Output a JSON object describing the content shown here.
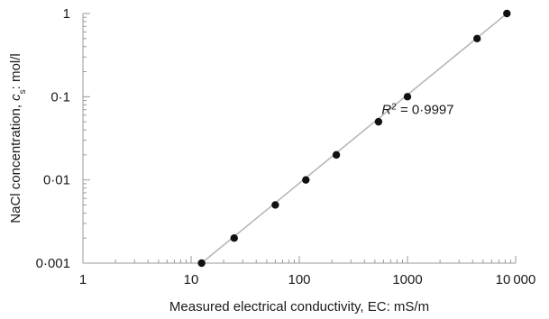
{
  "chart_data": {
    "type": "scatter",
    "title": "",
    "xlabel": "Measured electrical conductivity, EC: mS/m",
    "ylabel": {
      "prefix": "NaCl concentration, ",
      "var": "c",
      "sub": "s",
      "suffix": ": mol/l"
    },
    "xscale": "log",
    "yscale": "log",
    "xlim": [
      1,
      10000
    ],
    "ylim": [
      0.001,
      1
    ],
    "xticks": [
      1,
      10,
      100,
      1000,
      10000
    ],
    "xtick_labels": [
      "1",
      "10",
      "100",
      "1000",
      "10 000"
    ],
    "yticks": [
      0.001,
      0.01,
      0.1,
      1
    ],
    "ytick_labels": [
      "0·001",
      "0·01",
      "0·1",
      "1"
    ],
    "grid": false,
    "points": [
      {
        "x": 12.5,
        "y": 0.001
      },
      {
        "x": 25,
        "y": 0.002
      },
      {
        "x": 60,
        "y": 0.005
      },
      {
        "x": 115,
        "y": 0.01
      },
      {
        "x": 220,
        "y": 0.02
      },
      {
        "x": 540,
        "y": 0.05
      },
      {
        "x": 1000,
        "y": 0.1
      },
      {
        "x": 4400,
        "y": 0.5
      },
      {
        "x": 8300,
        "y": 1
      }
    ],
    "fit_line": {
      "x": [
        12.5,
        8300
      ],
      "y": [
        0.001,
        1
      ]
    },
    "annotation": {
      "r_label": "R",
      "r_power": "2",
      "r_value": " = 0·9997",
      "anchor_x": 700,
      "anchor_y": 0.07
    },
    "colors": {
      "points": "#111111",
      "fit_line": "#b8b8b8",
      "axes": "#9a9a9a",
      "text": "#1a1a1a"
    }
  }
}
